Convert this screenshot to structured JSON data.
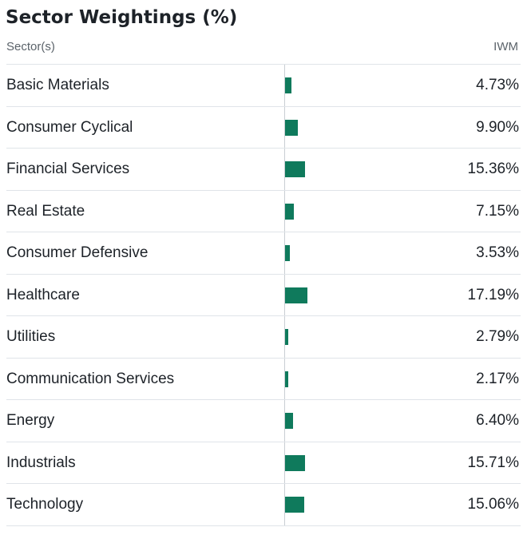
{
  "title": "Sector Weightings (%)",
  "header": {
    "sector_label": "Sector(s)",
    "fund_label": "IWM"
  },
  "bar_color": "#0f7a5c",
  "rows": [
    {
      "sector": "Basic Materials",
      "value": "4.73%",
      "pct": 4.73
    },
    {
      "sector": "Consumer Cyclical",
      "value": "9.90%",
      "pct": 9.9
    },
    {
      "sector": "Financial Services",
      "value": "15.36%",
      "pct": 15.36
    },
    {
      "sector": "Real Estate",
      "value": "7.15%",
      "pct": 7.15
    },
    {
      "sector": "Consumer Defensive",
      "value": "3.53%",
      "pct": 3.53
    },
    {
      "sector": "Healthcare",
      "value": "17.19%",
      "pct": 17.19
    },
    {
      "sector": "Utilities",
      "value": "2.79%",
      "pct": 2.79
    },
    {
      "sector": "Communication Services",
      "value": "2.17%",
      "pct": 2.17
    },
    {
      "sector": "Energy",
      "value": "6.40%",
      "pct": 6.4
    },
    {
      "sector": "Industrials",
      "value": "15.71%",
      "pct": 15.71
    },
    {
      "sector": "Technology",
      "value": "15.06%",
      "pct": 15.06
    }
  ]
}
